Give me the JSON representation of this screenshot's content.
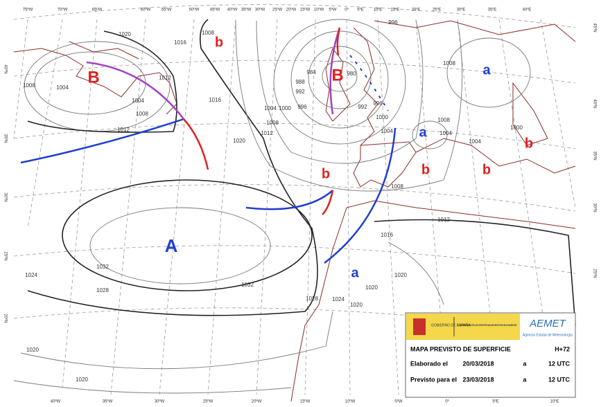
{
  "top_lon_labels": [
    "75ºW",
    "70ºW",
    "65ºW",
    "60ºW",
    "55ºW",
    "50ºW",
    "45ºW",
    "40ºW",
    "35ºW",
    "30ºW",
    "25ºW",
    "20ºW",
    "15ºW",
    "10ºW",
    "5ºW",
    "0º",
    "5ºE",
    "10ºE",
    "15ºE",
    "20ºE",
    "25ºE",
    "30ºE",
    "35ºE",
    "40ºE"
  ],
  "bottom_lon_labels": [
    "40ºW",
    "35ºW",
    "30ºW",
    "25ºW",
    "20ºW",
    "15ºW",
    "10ºW",
    "5ºW",
    "0º",
    "5ºE",
    "10ºE"
  ],
  "left_lat_labels": [
    "40ºN",
    "35ºN",
    "30ºN",
    "25ºN",
    "20ºN"
  ],
  "right_lat_labels": [
    "45ºN",
    "40ºN",
    "35ºN",
    "30ºN",
    "25ºN"
  ],
  "pressure_centers": [
    "B",
    "B",
    "b",
    "b",
    "b",
    "b",
    "b",
    "a",
    "a",
    "a",
    "A"
  ],
  "isobar_labels": [
    "1012",
    "1008",
    "1004",
    "1004",
    "1008",
    "1012",
    "1016",
    "1020",
    "1012",
    "1008",
    "1004",
    "1000",
    "996",
    "992",
    "988",
    "984",
    "980",
    "996",
    "992",
    "1000",
    "1004",
    "1008",
    "1012",
    "1016",
    "1020",
    "1020",
    "1024",
    "1020",
    "1028",
    "1032",
    "1032",
    "1024",
    "1028",
    "1020",
    "1020",
    "1008",
    "1008",
    "1000",
    "1004",
    "1004",
    "1016",
    "1020",
    "1008",
    "996"
  ],
  "info_box": {
    "gov": "GOBIERNO DE ESPAÑA",
    "ministry": "MINISTERIO DE AGRICULTURA Y PESCA, ALIMENTACIÓN Y MEDIO AMBIENTE",
    "brand": "AEMET",
    "agency": "Agencia Estatal de Meteorología",
    "title": "MAPA PREVISTO DE SUPERFICIE",
    "lead": "H+72",
    "rows": [
      [
        "Elaborado el",
        "20/03/2018",
        "a",
        "12 UTC"
      ],
      [
        "Previsto para el",
        "23/03/2018",
        "a",
        "12 UTC"
      ]
    ]
  }
}
